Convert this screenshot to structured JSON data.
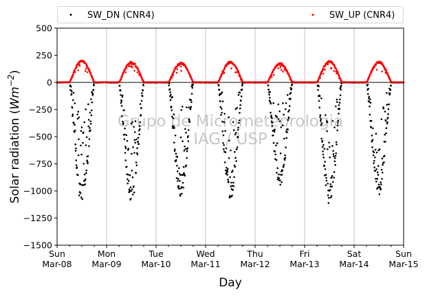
{
  "chart_data": {
    "type": "scatter",
    "title": "",
    "xlabel": "Day",
    "ylabel_main": "Solar radiation (",
    "ylabel_unit": "Wm",
    "ylabel_exp": "−2",
    "ylabel_close": ")",
    "ylim": [
      -1500,
      500
    ],
    "yticks": [
      500,
      250,
      0,
      -250,
      -500,
      -750,
      -1000,
      -1250,
      -1500
    ],
    "ytick_labels": [
      "500",
      "250",
      "0",
      "−250",
      "−500",
      "−750",
      "−1000",
      "−1250",
      "−1500"
    ],
    "xlim": [
      0,
      7
    ],
    "xticks": [
      0,
      1,
      2,
      3,
      4,
      5,
      6,
      7
    ],
    "xtick_labels": [
      [
        "Sun",
        "Mar-08"
      ],
      [
        "Mon",
        "Mar-09"
      ],
      [
        "Tue",
        "Mar-10"
      ],
      [
        "Wed",
        "Mar-11"
      ],
      [
        "Thu",
        "Mar-12"
      ],
      [
        "Fri",
        "Mar-13"
      ],
      [
        "Sat",
        "Mar-14"
      ],
      [
        "Sun",
        "Mar-15"
      ]
    ],
    "grid": "x-only",
    "zero_line": true,
    "legend_placement": "top, above plot",
    "watermark": [
      "Grupo de Micrometeorologia",
      "IAG / USP"
    ],
    "series": [
      {
        "name": "SW_DN (CNR4)",
        "color": "#000000",
        "marker": "dot",
        "daily_min": [
          -1130,
          -1095,
          -1065,
          -1085,
          -975,
          -1125,
          -1040
        ],
        "daylight_hours": [
          6,
          18
        ]
      },
      {
        "name": "SW_UP (CNR4)",
        "color": "#ff0000",
        "marker": "dot",
        "daily_max": [
          205,
          195,
          185,
          195,
          180,
          200,
          195
        ],
        "daylight_hours": [
          6,
          18
        ]
      }
    ]
  }
}
